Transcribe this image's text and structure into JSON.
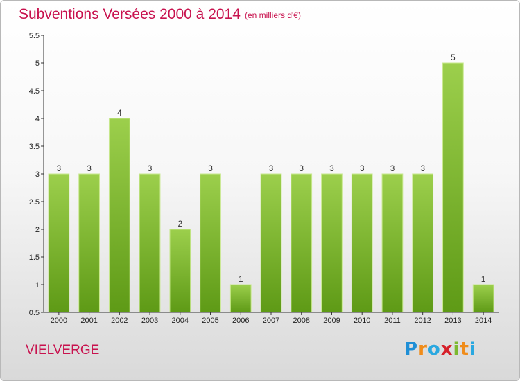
{
  "header": {
    "title": "Subventions Versées 2000 à 2014",
    "subtitle": "(en milliers d'€)"
  },
  "footer": {
    "commune": "VIELVERGE",
    "logo_text": "Proxiti",
    "logo_letters": [
      "P",
      "r",
      "o",
      "x",
      "i",
      "t",
      "i"
    ],
    "logo_colors": [
      "#1f8fd6",
      "#f08c1a",
      "#2aa8e0",
      "#d6202a",
      "#7cb82f",
      "#f08c1a",
      "#2aa8e0"
    ]
  },
  "chart_data": {
    "type": "bar",
    "categories": [
      "2000",
      "2001",
      "2002",
      "2003",
      "2004",
      "2005",
      "2006",
      "2007",
      "2008",
      "2009",
      "2010",
      "2011",
      "2012",
      "2013",
      "2014"
    ],
    "values": [
      3,
      3,
      4,
      3,
      2,
      3,
      1,
      3,
      3,
      3,
      3,
      3,
      3,
      5,
      1
    ],
    "data_labels": [
      "3",
      "3",
      "4",
      "3",
      "2",
      "3",
      "1",
      "3",
      "3",
      "3",
      "3",
      "3",
      "3",
      "5",
      "1"
    ],
    "ylim": [
      0.5,
      5.5
    ],
    "yticks": [
      0.5,
      1,
      1.5,
      2,
      2.5,
      3,
      3.5,
      4,
      4.5,
      5,
      5.5
    ],
    "ytick_labels": [
      "0.5",
      "1",
      "1.5",
      "2",
      "2.5",
      "3",
      "3.5",
      "4",
      "4.5",
      "5",
      "5.5"
    ],
    "grid": false,
    "colors": {
      "bar_top": "#9ccf4c",
      "bar_bottom": "#5e9a16",
      "bar_edge": "#c8e88e",
      "axis": "#333333"
    }
  }
}
